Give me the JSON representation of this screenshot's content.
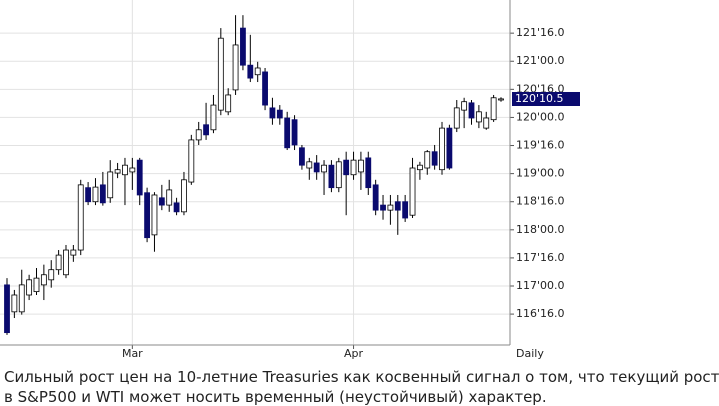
{
  "chart_data": {
    "type": "candlestick",
    "categories": [
      null,
      null,
      null,
      null,
      null,
      null,
      null,
      null,
      null,
      null,
      null,
      null,
      null,
      null,
      null,
      null,
      null,
      "Mar",
      null,
      null,
      null,
      null,
      null,
      null,
      null,
      null,
      null,
      null,
      null,
      null,
      null,
      null,
      null,
      null,
      null,
      null,
      null,
      null,
      null,
      null,
      null,
      null,
      null,
      null,
      null,
      null,
      null,
      "Apr",
      null,
      null,
      null,
      null,
      null,
      null,
      null,
      null,
      null,
      null,
      null,
      null,
      null,
      null,
      null,
      null,
      null,
      null,
      null,
      null
    ],
    "open": [
      117.02,
      116.54,
      116.54,
      116.84,
      116.9,
      117.02,
      117.11,
      117.29,
      117.2,
      117.55,
      117.64,
      118.75,
      118.5,
      118.8,
      118.57,
      119.01,
      118.98,
      119.03,
      119.24,
      118.66,
      117.91,
      118.57,
      118.44,
      118.48,
      118.32,
      118.85,
      119.6,
      119.87,
      119.78,
      120.13,
      120.1,
      120.49,
      121.59,
      120.93,
      120.76,
      120.81,
      120.17,
      120.13,
      119.99,
      119.96,
      119.46,
      119.1,
      119.19,
      119.03,
      119.15,
      118.75,
      119.24,
      118.98,
      119.03,
      119.28,
      118.8,
      118.44,
      118.35,
      118.5,
      118.5,
      118.26,
      119.07,
      119.1,
      119.39,
      119.07,
      119.81,
      119.81,
      120.13,
      120.26,
      119.92,
      119.81,
      119.96,
      120.31
    ],
    "high": [
      117.14,
      116.93,
      117.29,
      117.2,
      117.32,
      117.38,
      117.46,
      117.64,
      117.73,
      117.73,
      118.89,
      118.85,
      118.92,
      119.03,
      119.24,
      119.19,
      119.28,
      119.28,
      119.28,
      118.75,
      118.67,
      118.8,
      118.89,
      118.57,
      119.03,
      119.69,
      119.92,
      120.26,
      120.4,
      121.59,
      120.52,
      121.82,
      121.82,
      121.47,
      120.99,
      120.88,
      120.35,
      120.22,
      120.1,
      120.04,
      119.51,
      119.28,
      119.33,
      119.24,
      119.24,
      119.28,
      119.39,
      119.39,
      119.39,
      119.39,
      118.89,
      118.62,
      118.62,
      118.62,
      118.62,
      119.28,
      119.21,
      119.42,
      119.51,
      119.92,
      119.87,
      120.31,
      120.35,
      120.31,
      120.22,
      120.1,
      120.4,
      120.36
    ],
    "low": [
      116.13,
      116.43,
      116.49,
      116.75,
      116.84,
      116.75,
      116.97,
      117.2,
      117.14,
      117.43,
      117.55,
      118.44,
      118.44,
      118.43,
      118.48,
      118.92,
      118.44,
      118.71,
      118.44,
      117.78,
      117.61,
      118.35,
      118.32,
      118.26,
      118.26,
      118.8,
      119.51,
      119.6,
      119.72,
      120.04,
      120.04,
      120.4,
      120.84,
      120.63,
      120.63,
      120.13,
      119.87,
      119.87,
      119.42,
      119.42,
      119.07,
      118.89,
      118.89,
      118.62,
      118.67,
      118.67,
      118.26,
      118.89,
      118.71,
      118.62,
      118.26,
      118.18,
      118.09,
      117.91,
      118.14,
      118.21,
      118.89,
      118.98,
      119.07,
      118.98,
      119.07,
      119.74,
      119.81,
      119.87,
      119.81,
      119.78,
      119.92,
      120.28
    ],
    "close": [
      116.17,
      116.84,
      117.02,
      117.11,
      117.14,
      117.2,
      117.29,
      117.55,
      117.64,
      117.64,
      118.8,
      118.5,
      118.76,
      118.48,
      119.03,
      119.07,
      119.15,
      119.1,
      118.62,
      117.86,
      118.62,
      118.44,
      118.71,
      118.32,
      118.89,
      119.6,
      119.78,
      119.69,
      120.22,
      121.41,
      120.4,
      121.29,
      120.93,
      120.7,
      120.88,
      120.22,
      119.99,
      119.99,
      119.46,
      119.51,
      119.15,
      119.21,
      119.03,
      119.15,
      118.75,
      119.21,
      118.98,
      119.24,
      119.24,
      118.75,
      118.35,
      118.35,
      118.44,
      118.35,
      118.21,
      119.1,
      119.15,
      119.39,
      119.15,
      119.81,
      119.1,
      120.17,
      120.28,
      119.99,
      120.1,
      119.99,
      120.35,
      120.33
    ],
    "up_color": "#ffffff",
    "down_color": "#0a0a6e",
    "ylim": [
      115.95,
      122.09
    ],
    "yticks": [
      {
        "value": 116.5,
        "label": "116'16.0"
      },
      {
        "value": 117,
        "label": "117'00.0"
      },
      {
        "value": 117.5,
        "label": "117'16.0"
      },
      {
        "value": 118,
        "label": "118'00.0"
      },
      {
        "value": 118.5,
        "label": "118'16.0"
      },
      {
        "value": 119,
        "label": "119'00.0"
      },
      {
        "value": 119.5,
        "label": "119'16.0"
      },
      {
        "value": 120,
        "label": "120'00.0"
      },
      {
        "value": 120.5,
        "label": "120'16.0"
      },
      {
        "value": 121,
        "label": "121'00.0"
      },
      {
        "value": 121.5,
        "label": "121'16.0"
      }
    ],
    "last_price": {
      "value": 120.328125,
      "label": "120'10.5"
    },
    "period": "Daily",
    "grid": true,
    "caption": [
      "Сильный рост цен на 10-летние Treasuries как косвенный сигнал о том, что текущий рост",
      "в S&P500 и WTI может носить временный (неустойчивый) характер."
    ]
  }
}
